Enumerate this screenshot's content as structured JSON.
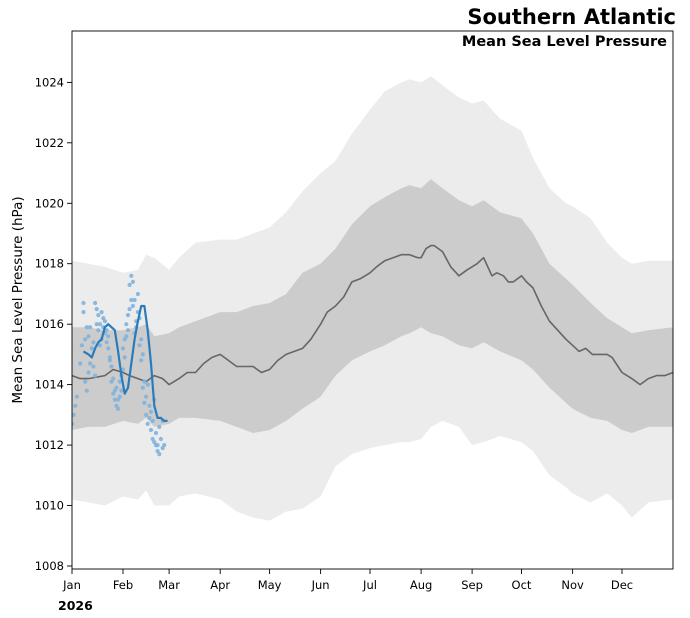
{
  "chart_data": {
    "type": "line",
    "title": "Southern Atlantic",
    "subtitle": "Mean Sea Level Pressure",
    "ylabel": "Mean Sea Level Pressure (hPa)",
    "xlabel": "",
    "year_label": "2026",
    "ylim": [
      1007.9,
      1025.7
    ],
    "xlim_days": [
      0,
      365
    ],
    "yticks": [
      1008,
      1010,
      1012,
      1014,
      1016,
      1018,
      1020,
      1022,
      1024
    ],
    "ytick_labels": [
      "1008",
      "1010",
      "1012",
      "1014",
      "1016",
      "1018",
      "1020",
      "1022",
      "1024"
    ],
    "xticks_days": [
      0,
      31,
      59,
      90,
      120,
      151,
      181,
      212,
      243,
      273,
      304,
      334
    ],
    "xtick_labels": [
      "Jan",
      "Feb",
      "Mar",
      "Apr",
      "May",
      "Jun",
      "Jul",
      "Aug",
      "Sep",
      "Oct",
      "Nov",
      "Dec"
    ],
    "colors": {
      "outer_band": "#ececec",
      "inner_band": "#cccccc",
      "median": "#666666",
      "current": "#2b7bba",
      "scatter": "#7fb2dd"
    },
    "series": [
      {
        "name": "climatology outer range",
        "kind": "band",
        "x": [
          0,
          10,
          20,
          31,
          40,
          45,
          50,
          59,
          65,
          75,
          90,
          100,
          110,
          120,
          130,
          140,
          151,
          160,
          170,
          181,
          190,
          200,
          205,
          212,
          218,
          225,
          235,
          243,
          250,
          260,
          273,
          280,
          290,
          300,
          304,
          315,
          325,
          334,
          340,
          350,
          365
        ],
        "upper": [
          1018.1,
          1018.0,
          1017.9,
          1017.7,
          1017.8,
          1018.3,
          1018.2,
          1017.8,
          1018.2,
          1018.7,
          1018.8,
          1018.8,
          1019.0,
          1019.2,
          1019.7,
          1020.4,
          1021.0,
          1021.4,
          1022.3,
          1023.1,
          1023.7,
          1024.0,
          1024.1,
          1024.0,
          1024.2,
          1023.9,
          1023.5,
          1023.3,
          1023.4,
          1022.8,
          1022.4,
          1021.5,
          1020.5,
          1020.0,
          1019.9,
          1019.5,
          1018.7,
          1018.2,
          1018.0,
          1018.1,
          1018.1
        ],
        "lower": [
          1010.2,
          1010.1,
          1010.0,
          1010.3,
          1010.2,
          1010.5,
          1010.0,
          1010.0,
          1010.3,
          1010.4,
          1010.2,
          1009.8,
          1009.6,
          1009.5,
          1009.8,
          1009.9,
          1010.3,
          1011.3,
          1011.7,
          1011.9,
          1012.0,
          1012.1,
          1012.1,
          1012.2,
          1012.6,
          1012.8,
          1012.6,
          1012.0,
          1012.1,
          1012.3,
          1012.1,
          1011.8,
          1011.0,
          1010.6,
          1010.4,
          1010.1,
          1010.4,
          1010.0,
          1009.6,
          1010.1,
          1010.2
        ]
      },
      {
        "name": "climatology inner range",
        "kind": "band",
        "x": [
          0,
          10,
          20,
          31,
          40,
          45,
          50,
          59,
          65,
          75,
          90,
          100,
          110,
          120,
          130,
          140,
          151,
          160,
          170,
          181,
          190,
          200,
          205,
          212,
          218,
          225,
          235,
          243,
          250,
          260,
          273,
          280,
          290,
          300,
          304,
          315,
          325,
          334,
          340,
          350,
          365
        ],
        "upper": [
          1015.9,
          1015.9,
          1015.8,
          1015.8,
          1015.9,
          1016.0,
          1015.6,
          1015.7,
          1015.9,
          1016.1,
          1016.4,
          1016.4,
          1016.6,
          1016.7,
          1017.0,
          1017.7,
          1018.0,
          1018.5,
          1019.3,
          1019.9,
          1020.2,
          1020.5,
          1020.6,
          1020.5,
          1020.8,
          1020.5,
          1020.1,
          1019.9,
          1020.1,
          1019.7,
          1019.5,
          1019.0,
          1018.0,
          1017.5,
          1017.3,
          1016.7,
          1016.2,
          1015.9,
          1015.7,
          1015.8,
          1015.9
        ],
        "lower": [
          1012.5,
          1012.6,
          1012.6,
          1012.8,
          1012.7,
          1012.9,
          1012.6,
          1012.7,
          1012.9,
          1012.9,
          1012.8,
          1012.6,
          1012.4,
          1012.5,
          1012.8,
          1013.2,
          1013.6,
          1014.3,
          1014.8,
          1015.1,
          1015.3,
          1015.6,
          1015.7,
          1015.9,
          1015.7,
          1015.6,
          1015.3,
          1015.2,
          1015.4,
          1015.1,
          1014.8,
          1014.5,
          1013.9,
          1013.4,
          1013.2,
          1012.9,
          1012.8,
          1012.5,
          1012.4,
          1012.6,
          1012.6
        ]
      },
      {
        "name": "climatology median",
        "kind": "line",
        "x": [
          0,
          5,
          10,
          20,
          25,
          31,
          35,
          40,
          45,
          50,
          55,
          59,
          65,
          70,
          75,
          80,
          85,
          90,
          95,
          100,
          105,
          110,
          115,
          120,
          125,
          130,
          135,
          140,
          145,
          151,
          155,
          160,
          165,
          170,
          175,
          181,
          185,
          190,
          195,
          200,
          205,
          210,
          212,
          215,
          218,
          220,
          225,
          230,
          235,
          240,
          243,
          246,
          250,
          255,
          258,
          262,
          265,
          268,
          273,
          276,
          280,
          285,
          290,
          295,
          300,
          304,
          308,
          312,
          316,
          320,
          325,
          328,
          334,
          340,
          345,
          350,
          355,
          360,
          365
        ],
        "values": [
          1014.3,
          1014.2,
          1014.2,
          1014.3,
          1014.5,
          1014.4,
          1014.3,
          1014.2,
          1014.1,
          1014.3,
          1014.2,
          1014.0,
          1014.2,
          1014.4,
          1014.4,
          1014.7,
          1014.9,
          1015.0,
          1014.8,
          1014.6,
          1014.6,
          1014.6,
          1014.4,
          1014.5,
          1014.8,
          1015.0,
          1015.1,
          1015.2,
          1015.5,
          1016.0,
          1016.4,
          1016.6,
          1016.9,
          1017.4,
          1017.5,
          1017.7,
          1017.9,
          1018.1,
          1018.2,
          1018.3,
          1018.3,
          1018.2,
          1018.2,
          1018.5,
          1018.6,
          1018.6,
          1018.4,
          1017.9,
          1017.6,
          1017.8,
          1017.9,
          1018.0,
          1018.2,
          1017.6,
          1017.7,
          1017.6,
          1017.4,
          1017.4,
          1017.6,
          1017.4,
          1017.2,
          1016.6,
          1016.1,
          1015.8,
          1015.5,
          1015.3,
          1015.1,
          1015.2,
          1015.0,
          1015.0,
          1015.0,
          1014.9,
          1014.4,
          1014.2,
          1014.0,
          1014.2,
          1014.3,
          1014.3,
          1014.4
        ]
      },
      {
        "name": "2026 observed (smoothed)",
        "kind": "line",
        "x": [
          7,
          10,
          12,
          14,
          16,
          18,
          20,
          22,
          24,
          26,
          28,
          30,
          32,
          34,
          36,
          38,
          40,
          42,
          44,
          46,
          48,
          50,
          52,
          54,
          56,
          58
        ],
        "values": [
          1015.1,
          1015.0,
          1014.9,
          1015.2,
          1015.4,
          1015.5,
          1015.9,
          1016.0,
          1015.9,
          1015.8,
          1015.1,
          1014.3,
          1013.7,
          1013.9,
          1014.7,
          1015.5,
          1016.1,
          1016.6,
          1016.6,
          1015.8,
          1014.7,
          1013.3,
          1012.9,
          1012.9,
          1012.8,
          1012.8
        ]
      },
      {
        "name": "2026 observed (samples)",
        "kind": "scatter",
        "x": [
          0,
          1,
          2,
          3,
          5,
          6,
          7,
          7,
          8,
          8,
          9,
          9,
          10,
          10,
          11,
          11,
          12,
          13,
          13,
          14,
          14,
          15,
          15,
          16,
          16,
          17,
          17,
          18,
          18,
          19,
          19,
          20,
          20,
          21,
          21,
          22,
          22,
          23,
          23,
          24,
          24,
          25,
          25,
          26,
          26,
          27,
          27,
          28,
          28,
          29,
          29,
          30,
          30,
          31,
          31,
          32,
          32,
          33,
          33,
          34,
          34,
          35,
          35,
          36,
          36,
          37,
          37,
          38,
          38,
          39,
          39,
          40,
          40,
          41,
          41,
          42,
          42,
          43,
          43,
          44,
          44,
          45,
          45,
          46,
          46,
          47,
          47,
          48,
          48,
          49,
          49,
          50,
          50,
          51,
          51,
          52,
          52,
          53,
          53,
          54,
          55,
          55,
          56
        ],
        "values": [
          1012.7,
          1013.0,
          1013.3,
          1013.6,
          1014.7,
          1015.3,
          1016.4,
          1016.7,
          1014.1,
          1015.5,
          1013.8,
          1015.9,
          1014.4,
          1015.6,
          1014.7,
          1015.9,
          1015.2,
          1014.6,
          1015.4,
          1014.3,
          1016.7,
          1016.0,
          1016.5,
          1015.8,
          1016.3,
          1015.3,
          1016.0,
          1015.5,
          1016.4,
          1015.9,
          1016.2,
          1015.7,
          1016.1,
          1015.4,
          1015.8,
          1015.2,
          1015.6,
          1014.8,
          1014.9,
          1014.6,
          1014.1,
          1014.2,
          1013.7,
          1013.5,
          1013.8,
          1013.3,
          1013.9,
          1013.2,
          1013.5,
          1013.6,
          1014.1,
          1013.8,
          1014.3,
          1014.5,
          1015.2,
          1014.9,
          1015.5,
          1015.6,
          1016.0,
          1015.8,
          1016.3,
          1016.5,
          1017.3,
          1016.8,
          1017.6,
          1016.6,
          1017.4,
          1015.7,
          1016.8,
          1015.9,
          1016.1,
          1016.4,
          1017.0,
          1015.3,
          1016.2,
          1014.8,
          1015.5,
          1013.9,
          1015.0,
          1013.4,
          1014.1,
          1013.0,
          1013.6,
          1012.7,
          1014.0,
          1012.9,
          1013.3,
          1012.5,
          1013.1,
          1012.8,
          1012.2,
          1012.1,
          1013.5,
          1012.0,
          1012.4,
          1011.8,
          1012.0,
          1011.7,
          1012.6,
          1012.2,
          1011.9,
          1012.8,
          1012.0
        ]
      }
    ]
  }
}
